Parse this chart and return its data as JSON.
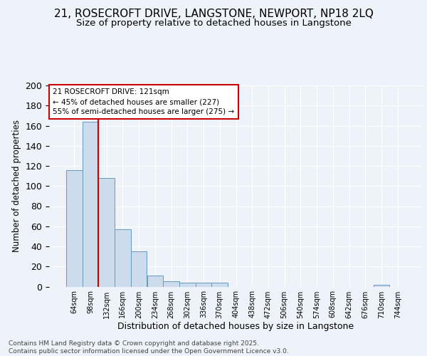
{
  "title1": "21, ROSECROFT DRIVE, LANGSTONE, NEWPORT, NP18 2LQ",
  "title2": "Size of property relative to detached houses in Langstone",
  "xlabel": "Distribution of detached houses by size in Langstone",
  "ylabel": "Number of detached properties",
  "bin_labels": [
    "64sqm",
    "98sqm",
    "132sqm",
    "166sqm",
    "200sqm",
    "234sqm",
    "268sqm",
    "302sqm",
    "336sqm",
    "370sqm",
    "404sqm",
    "438sqm",
    "472sqm",
    "506sqm",
    "540sqm",
    "574sqm",
    "608sqm",
    "642sqm",
    "676sqm",
    "710sqm",
    "744sqm"
  ],
  "bar_heights": [
    116,
    164,
    108,
    57,
    35,
    11,
    5,
    4,
    4,
    4,
    0,
    0,
    0,
    0,
    0,
    0,
    0,
    0,
    0,
    2,
    0
  ],
  "bar_color": "#ccdcec",
  "bar_edgecolor": "#6699bb",
  "vline_x_index": 2,
  "vline_color": "#cc0000",
  "annotation_line1": "21 ROSECROFT DRIVE: 121sqm",
  "annotation_line2": "← 45% of detached houses are smaller (227)",
  "annotation_line3": "55% of semi-detached houses are larger (275) →",
  "annotation_box_color": "#ffffff",
  "annotation_box_edgecolor": "#cc0000",
  "ylim": [
    0,
    200
  ],
  "yticks": [
    0,
    20,
    40,
    60,
    80,
    100,
    120,
    140,
    160,
    180,
    200
  ],
  "background_color": "#eef3f9",
  "grid_color": "#ffffff",
  "footer_text": "Contains HM Land Registry data © Crown copyright and database right 2025.\nContains public sector information licensed under the Open Government Licence v3.0.",
  "title_fontsize": 11,
  "subtitle_fontsize": 9.5
}
